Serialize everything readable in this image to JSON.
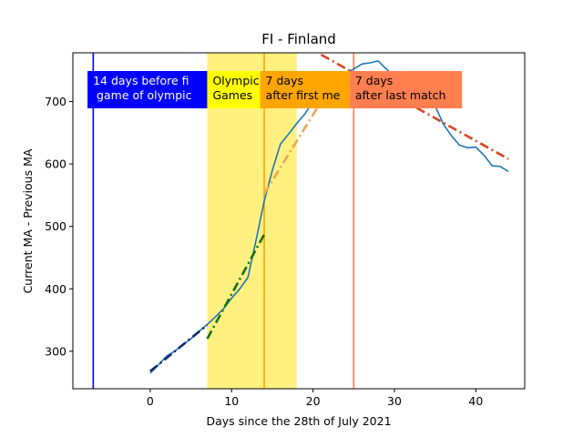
{
  "chart_data": {
    "type": "line",
    "title": "FI - Finland",
    "xlabel": "Days since the 28th of July 2021",
    "ylabel": "Current MA - Previous MA",
    "xlim": [
      -9.5,
      46
    ],
    "ylim": [
      240,
      778
    ],
    "x_ticks": [
      0,
      10,
      20,
      30,
      40
    ],
    "y_ticks": [
      300,
      400,
      500,
      600,
      700
    ],
    "grid": false,
    "legend": "none",
    "shaded_regions": [
      {
        "x_start": 7,
        "x_end": 18,
        "color": "#fff07f"
      }
    ],
    "vertical_lines": [
      {
        "x": -7,
        "color": "#0000ff"
      },
      {
        "x": 14,
        "color": "#ffa500"
      },
      {
        "x": 25,
        "color": "#ff7f50"
      }
    ],
    "annotations": [
      {
        "lines": [
          "14 days before fi",
          " game of olympic"
        ],
        "background": "#0000ff",
        "text_color": "#ffffff"
      },
      {
        "lines": [
          "Olympic",
          "Games"
        ],
        "background": "#ffff00",
        "text_color": "#000000"
      },
      {
        "lines": [
          "7 days",
          "after first me"
        ],
        "background": "#ffa500",
        "text_color": "#000000"
      },
      {
        "lines": [
          "7 days",
          "after last match"
        ],
        "background": "#ff7f50",
        "text_color": "#000000"
      }
    ],
    "series": [
      {
        "color": "#1f77b4",
        "style": "solid",
        "x": [
          0,
          1,
          2,
          3,
          4,
          5,
          6,
          7,
          8,
          9,
          10,
          11,
          12,
          13,
          14,
          15,
          16,
          17,
          18,
          19,
          20,
          21,
          22,
          23,
          24,
          25,
          26,
          27,
          28,
          29,
          30,
          31,
          32,
          33,
          34,
          35,
          36,
          37,
          38,
          39,
          40,
          41,
          42,
          43,
          44
        ],
        "y": [
          265,
          278,
          292,
          300,
          310,
          320,
          332,
          343,
          355,
          368,
          385,
          400,
          418,
          478,
          540,
          590,
          632,
          648,
          665,
          680,
          700,
          697,
          712,
          728,
          745,
          752,
          760,
          762,
          765,
          752,
          740,
          725,
          715,
          712,
          703,
          693,
          664,
          645,
          630,
          626,
          627,
          614,
          597,
          596,
          588
        ]
      },
      {
        "color": "#0b2a6f",
        "style": "dashdot",
        "x": [
          0,
          7
        ],
        "y": [
          268,
          342
        ]
      },
      {
        "color": "#1a6e1a",
        "style": "dashdot",
        "x": [
          7,
          14
        ],
        "y": [
          320,
          487
        ]
      },
      {
        "color": "#e8a857",
        "style": "dashdot",
        "x": [
          14,
          21
        ],
        "y": [
          552,
          700
        ]
      },
      {
        "color": "#d9421f",
        "style": "dashdot",
        "x": [
          21,
          44
        ],
        "y": [
          775,
          608
        ]
      }
    ]
  }
}
